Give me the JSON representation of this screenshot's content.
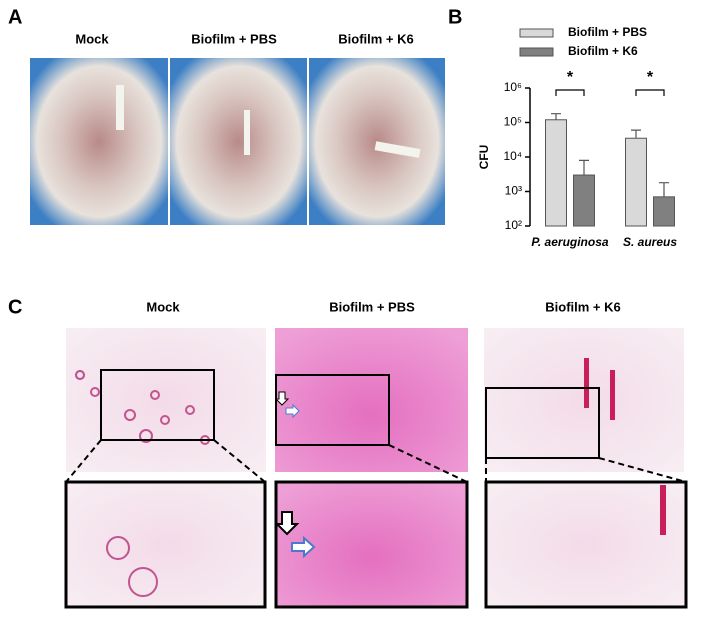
{
  "panels": {
    "a": {
      "label": "A",
      "captions": [
        "Mock",
        "Biofilm + PBS",
        "Biofilm + K6"
      ]
    },
    "b": {
      "label": "B"
    },
    "c": {
      "label": "C",
      "captions": [
        "Mock",
        "Biofilm + PBS",
        "Biofilm + K6"
      ]
    }
  },
  "chart_data": {
    "type": "bar",
    "y_label": "CFU",
    "log_y": true,
    "legend": "top",
    "categories": [
      "P. aeruginosa",
      "S. aureus"
    ],
    "series": [
      {
        "name": "Biofilm + PBS",
        "color": "#d9d9d9",
        "values": [
          120000,
          35000
        ],
        "errors": [
          60000,
          25000
        ]
      },
      {
        "name": "Biofilm + K6",
        "color": "#808080",
        "values": [
          3000,
          700
        ],
        "errors": [
          5000,
          1100
        ]
      }
    ],
    "annotations": [
      "*",
      "*"
    ],
    "ylim": [
      100,
      1000000
    ],
    "yticks": [
      {
        "value": 100,
        "label": "10²"
      },
      {
        "value": 1000,
        "label": "10³"
      },
      {
        "value": 10000,
        "label": "10⁴"
      },
      {
        "value": 100000,
        "label": "10⁵"
      },
      {
        "value": 1000000,
        "label": "10⁶"
      }
    ]
  }
}
